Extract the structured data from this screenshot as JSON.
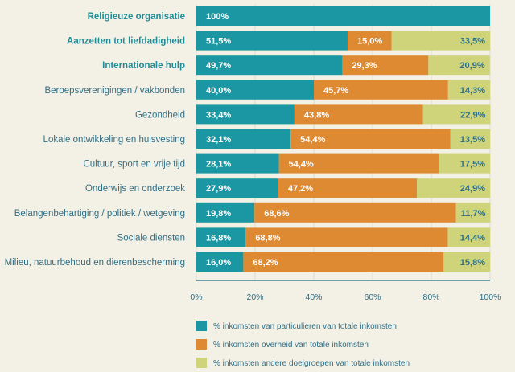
{
  "chart_data": {
    "type": "bar",
    "orientation": "horizontal",
    "stacked": true,
    "categories": [
      "Religieuze organisatie",
      "Aanzetten tot liefdadigheid",
      "Internationale hulp",
      "Beroepsverenigingen / vakbonden",
      "Gezondheid",
      "Lokale ontwikkeling en huisvesting",
      "Cultuur, sport en vrije tijd",
      "Onderwijs en onderzoek",
      "Belangenbehartiging / politiek / wetgeving",
      "Sociale diensten",
      "Milieu, natuurbehoud en dierenbescherming"
    ],
    "highlighted": [
      0,
      1,
      2
    ],
    "series": [
      {
        "name": "% inkomsten van particulieren van totale inkomsten",
        "color": "#1a97a2",
        "values": [
          100,
          51.5,
          49.7,
          40.0,
          33.4,
          32.1,
          28.1,
          27.9,
          19.8,
          16.8,
          16.0
        ],
        "labels": [
          "100%",
          "51,5%",
          "49,7%",
          "40,0%",
          "33,4%",
          "32,1%",
          "28,1%",
          "27,9%",
          "19,8%",
          "16,8%",
          "16,0%"
        ]
      },
      {
        "name": "% inkomsten overheid van totale inkomsten",
        "color": "#de8a33",
        "values": [
          0,
          15.0,
          29.3,
          45.7,
          43.8,
          54.4,
          54.4,
          47.2,
          68.6,
          68.8,
          68.2
        ],
        "labels": [
          "",
          "15,0%",
          "29,3%",
          "45,7%",
          "43,8%",
          "54,4%",
          "54,4%",
          "47,2%",
          "68,6%",
          "68,8%",
          "68,2%"
        ]
      },
      {
        "name": "% inkomsten andere doelgroepen van totale inkomsten",
        "color": "#cfd37a",
        "values": [
          0,
          33.5,
          20.9,
          14.3,
          22.9,
          13.5,
          17.5,
          24.9,
          11.7,
          14.4,
          15.8
        ],
        "labels": [
          "",
          "33,5%",
          "20,9%",
          "14,3%",
          "22,9%",
          "13,5%",
          "17,5%",
          "24,9%",
          "11,7%",
          "14,4%",
          "15,8%"
        ]
      }
    ],
    "xlim": [
      0,
      100
    ],
    "xticks": [
      "0%",
      "20%",
      "40%",
      "60%",
      "80%",
      "100%"
    ],
    "grid": true,
    "legend": "bottom"
  }
}
